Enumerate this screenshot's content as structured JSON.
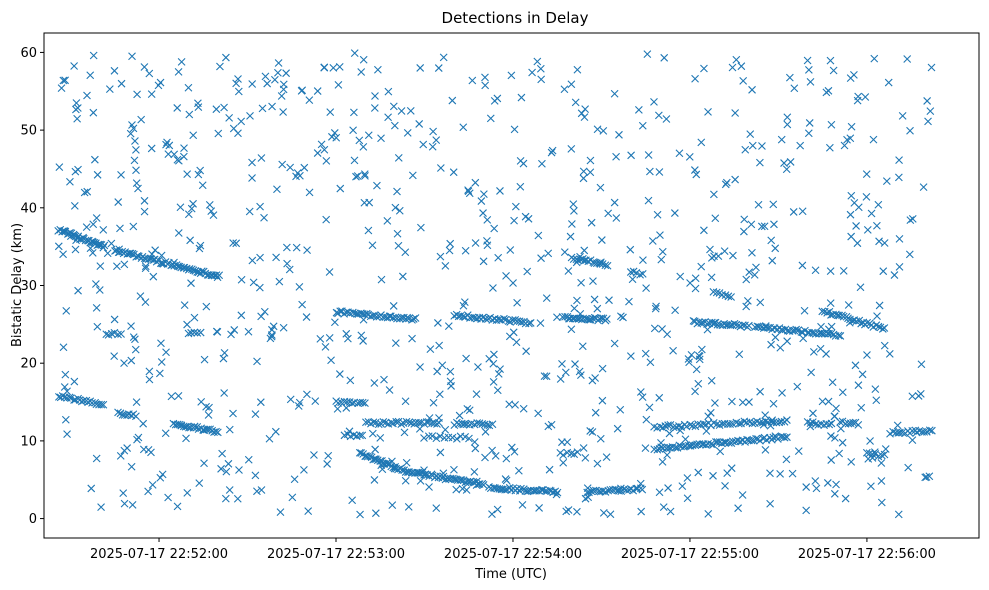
{
  "chart_data": {
    "type": "scatter",
    "title": "Detections in Delay",
    "xlabel": "Time (UTC)",
    "ylabel": "Bistatic Delay (km)",
    "marker": "x",
    "color": "#1f77b4",
    "grid": false,
    "legend": "none",
    "xlim": [
      "2025-07-17 22:51:21",
      "2025-07-17 22:56:38"
    ],
    "ylim": [
      -2.5,
      62.5
    ],
    "x_ticks": [
      "2025-07-17 22:52:00",
      "2025-07-17 22:53:00",
      "2025-07-17 22:54:00",
      "2025-07-17 22:55:00",
      "2025-07-17 22:56:00"
    ],
    "y_ticks": [
      "0",
      "10",
      "20",
      "30",
      "40",
      "50",
      "60"
    ],
    "tracks": [
      {
        "start": [
          "2025-07-17 22:51:26",
          37.2
        ],
        "end": [
          "2025-07-17 22:51:41",
          35.0
        ],
        "count": 32
      },
      {
        "start": [
          "2025-07-17 22:51:45",
          34.5
        ],
        "end": [
          "2025-07-17 22:52:20",
          31.2
        ],
        "count": 60
      },
      {
        "start": [
          "2025-07-17 22:51:26",
          15.8
        ],
        "end": [
          "2025-07-17 22:51:41",
          14.6
        ],
        "count": 22
      },
      {
        "start": [
          "2025-07-17 22:51:46",
          13.6
        ],
        "end": [
          "2025-07-17 22:51:52",
          13.3
        ],
        "count": 9
      },
      {
        "start": [
          "2025-07-17 22:52:05",
          12.2
        ],
        "end": [
          "2025-07-17 22:52:20",
          11.2
        ],
        "count": 24
      },
      {
        "start": [
          "2025-07-17 22:51:42",
          23.6
        ],
        "end": [
          "2025-07-17 22:51:47",
          23.9
        ],
        "count": 6
      },
      {
        "start": [
          "2025-07-17 22:52:10",
          23.8
        ],
        "end": [
          "2025-07-17 22:52:14",
          23.9
        ],
        "count": 5
      },
      {
        "start": [
          "2025-07-17 22:53:00",
          26.6
        ],
        "end": [
          "2025-07-17 22:53:27",
          25.7
        ],
        "count": 40
      },
      {
        "start": [
          "2025-07-17 22:53:40",
          26.2
        ],
        "end": [
          "2025-07-17 22:54:06",
          25.2
        ],
        "count": 35
      },
      {
        "start": [
          "2025-07-17 22:54:17",
          25.9
        ],
        "end": [
          "2025-07-17 22:54:32",
          25.6
        ],
        "count": 25
      },
      {
        "start": [
          "2025-07-17 22:53:00",
          15.0
        ],
        "end": [
          "2025-07-17 22:53:10",
          14.8
        ],
        "count": 12
      },
      {
        "start": [
          "2025-07-17 22:53:10",
          12.3
        ],
        "end": [
          "2025-07-17 22:53:35",
          12.3
        ],
        "count": 30
      },
      {
        "start": [
          "2025-07-17 22:53:40",
          12.2
        ],
        "end": [
          "2025-07-17 22:53:53",
          12.1
        ],
        "count": 16
      },
      {
        "start": [
          "2025-07-17 22:53:03",
          10.8
        ],
        "end": [
          "2025-07-17 22:53:09",
          10.6
        ],
        "count": 7
      },
      {
        "start": [
          "2025-07-17 22:53:30",
          10.5
        ],
        "end": [
          "2025-07-17 22:53:45",
          10.4
        ],
        "count": 12
      },
      {
        "start": [
          "2025-07-17 22:53:08",
          8.4
        ],
        "end": [
          "2025-07-17 22:53:20",
          6.6
        ],
        "count": 22
      },
      {
        "start": [
          "2025-07-17 22:53:20",
          6.4
        ],
        "end": [
          "2025-07-17 22:53:50",
          4.3
        ],
        "count": 50
      },
      {
        "start": [
          "2025-07-17 22:53:52",
          4.0
        ],
        "end": [
          "2025-07-17 22:54:15",
          3.4
        ],
        "count": 35
      },
      {
        "start": [
          "2025-07-17 22:54:16",
          8.3
        ],
        "end": [
          "2025-07-17 22:54:22",
          8.4
        ],
        "count": 6
      },
      {
        "start": [
          "2025-07-17 22:54:25",
          3.5
        ],
        "end": [
          "2025-07-17 22:54:44",
          3.8
        ],
        "count": 25
      },
      {
        "start": [
          "2025-07-17 22:54:20",
          33.6
        ],
        "end": [
          "2025-07-17 22:54:32",
          32.7
        ],
        "count": 18
      },
      {
        "start": [
          "2025-07-17 22:54:40",
          31.8
        ],
        "end": [
          "2025-07-17 22:54:44",
          31.4
        ],
        "count": 5
      },
      {
        "start": [
          "2025-07-17 22:54:48",
          11.8
        ],
        "end": [
          "2025-07-17 22:55:33",
          12.6
        ],
        "count": 50
      },
      {
        "start": [
          "2025-07-17 22:54:48",
          9.0
        ],
        "end": [
          "2025-07-17 22:55:33",
          10.5
        ],
        "count": 60
      },
      {
        "start": [
          "2025-07-17 22:55:01",
          25.3
        ],
        "end": [
          "2025-07-17 22:55:20",
          24.8
        ],
        "count": 28
      },
      {
        "start": [
          "2025-07-17 22:55:22",
          24.7
        ],
        "end": [
          "2025-07-17 22:55:51",
          23.6
        ],
        "count": 40
      },
      {
        "start": [
          "2025-07-17 22:55:45",
          26.7
        ],
        "end": [
          "2025-07-17 22:56:06",
          24.4
        ],
        "count": 30
      },
      {
        "start": [
          "2025-07-17 22:55:40",
          12.3
        ],
        "end": [
          "2025-07-17 22:55:48",
          12.1
        ],
        "count": 10
      },
      {
        "start": [
          "2025-07-17 22:55:51",
          12.4
        ],
        "end": [
          "2025-07-17 22:55:57",
          12.2
        ],
        "count": 8
      },
      {
        "start": [
          "2025-07-17 22:56:08",
          11.0
        ],
        "end": [
          "2025-07-17 22:56:22",
          11.3
        ],
        "count": 18
      },
      {
        "start": [
          "2025-07-17 22:56:00",
          8.3
        ],
        "end": [
          "2025-07-17 22:56:06",
          8.1
        ],
        "count": 7
      },
      {
        "start": [
          "2025-07-17 22:55:08",
          29.0
        ],
        "end": [
          "2025-07-17 22:55:14",
          28.6
        ],
        "count": 7
      }
    ],
    "clutter": {
      "count": 900,
      "x_range": [
        "2025-07-17 22:51:26",
        "2025-07-17 22:56:22"
      ],
      "y_range": [
        0.5,
        60
      ]
    }
  }
}
